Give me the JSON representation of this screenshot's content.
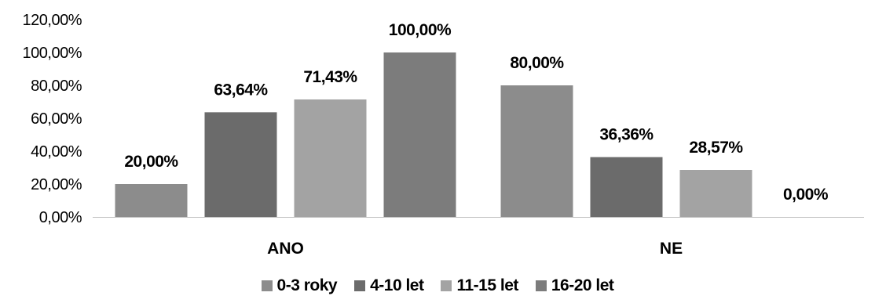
{
  "chart_data": {
    "type": "bar",
    "categories": [
      "ANO",
      "NE"
    ],
    "series": [
      {
        "name": "0-3 roky",
        "values": [
          20.0,
          80.0
        ],
        "labels": [
          "20,00%",
          "80,00%"
        ],
        "color": "#8c8c8c"
      },
      {
        "name": "4-10 let",
        "values": [
          63.64,
          36.36
        ],
        "labels": [
          "63,64%",
          "36,36%"
        ],
        "color": "#6b6b6b"
      },
      {
        "name": "11-15 let",
        "values": [
          71.43,
          28.57
        ],
        "labels": [
          "71,43%",
          "28,57%"
        ],
        "color": "#a3a3a3"
      },
      {
        "name": "16-20 let",
        "values": [
          100.0,
          0.0
        ],
        "labels": [
          "100,00%",
          "0,00%"
        ],
        "color": "#7c7c7c"
      }
    ],
    "ylim": [
      0,
      120
    ],
    "yticks": [
      0,
      20,
      40,
      60,
      80,
      100,
      120
    ],
    "ytick_labels": [
      "0,00%",
      "20,00%",
      "40,00%",
      "60,00%",
      "80,00%",
      "100,00%",
      "120,00%"
    ],
    "grid": false,
    "legend_position": "bottom"
  }
}
